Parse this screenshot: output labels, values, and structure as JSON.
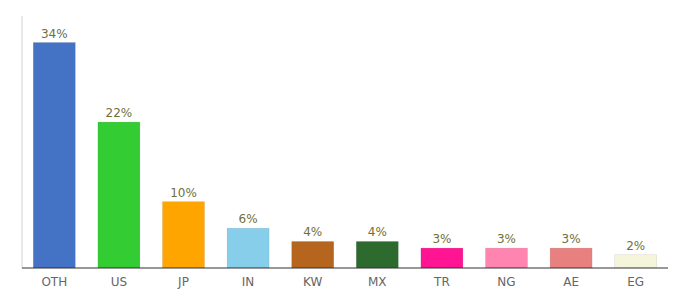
{
  "chart_data": {
    "type": "bar",
    "categories": [
      "OTH",
      "US",
      "JP",
      "IN",
      "KW",
      "MX",
      "TR",
      "NG",
      "AE",
      "EG"
    ],
    "values": [
      34,
      22,
      10,
      6,
      4,
      4,
      3,
      3,
      3,
      2
    ],
    "value_labels": [
      "34%",
      "22%",
      "10%",
      "6%",
      "4%",
      "4%",
      "3%",
      "3%",
      "3%",
      "2%"
    ],
    "colors": [
      "#4472c4",
      "#33cc33",
      "#ffa500",
      "#87ceeb",
      "#b5651d",
      "#2d6a2d",
      "#ff1493",
      "#ff85b0",
      "#e88080",
      "#f5f5dc"
    ],
    "ylim": [
      0,
      38
    ],
    "data_labels": true,
    "tick_labels": "x"
  }
}
